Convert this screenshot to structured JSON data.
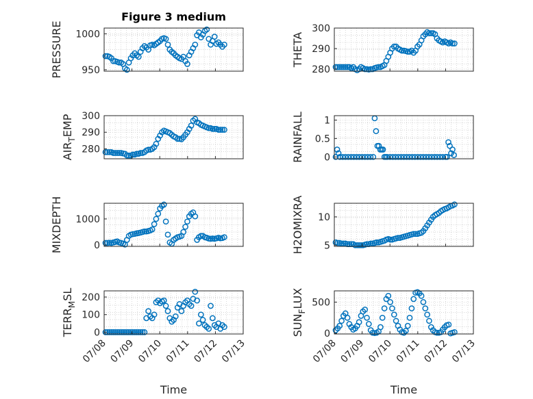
{
  "figure": {
    "title": "Figure 3 medium"
  },
  "chart_data": [
    {
      "type": "scatter",
      "title": "Figure 3 medium",
      "ylabel": "PRESSURE",
      "ylim": [
        948,
        1008
      ],
      "yticks": [
        950,
        1000
      ],
      "xlim": [
        0,
        5
      ],
      "xtick_values": [
        0,
        1,
        2,
        3,
        4,
        5
      ],
      "x_tick_labels": [],
      "xlabel": "",
      "grid": true,
      "x": [
        0.05,
        0.12,
        0.19,
        0.26,
        0.33,
        0.4,
        0.47,
        0.54,
        0.61,
        0.68,
        0.75,
        0.82,
        0.89,
        0.96,
        1.03,
        1.1,
        1.17,
        1.24,
        1.31,
        1.38,
        1.45,
        1.52,
        1.59,
        1.66,
        1.73,
        1.8,
        1.87,
        1.94,
        2.01,
        2.08,
        2.15,
        2.22,
        2.29,
        2.36,
        2.43,
        2.5,
        2.57,
        2.64,
        2.71,
        2.78,
        2.85,
        2.92,
        2.99,
        3.06,
        3.13,
        3.2,
        3.27,
        3.34,
        3.41,
        3.48,
        3.55,
        3.62,
        3.69,
        3.76,
        3.83,
        3.9,
        3.97,
        4.04,
        4.11,
        4.18,
        4.25,
        4.32
      ],
      "y": [
        969,
        969,
        968,
        966,
        962,
        962,
        961,
        960,
        960,
        958,
        952,
        950,
        960,
        966,
        970,
        973,
        970,
        968,
        975,
        980,
        983,
        981,
        978,
        984,
        985,
        984,
        986,
        988,
        990,
        993,
        994,
        993,
        985,
        978,
        975,
        973,
        970,
        968,
        966,
        965,
        968,
        962,
        958,
        970,
        975,
        980,
        985,
        998,
        1002,
        995,
        999,
        1004,
        1006,
        993,
        985,
        990,
        996,
        986,
        988,
        985,
        982,
        985
      ]
    },
    {
      "type": "scatter",
      "title": "",
      "ylabel": "THETA",
      "ylim": [
        279,
        300
      ],
      "yticks": [
        280,
        290,
        300
      ],
      "xlim": [
        0,
        5
      ],
      "xtick_values": [
        0,
        1,
        2,
        3,
        4,
        5
      ],
      "x_tick_labels": [],
      "xlabel": "",
      "grid": true,
      "x": [
        0.05,
        0.12,
        0.19,
        0.26,
        0.33,
        0.4,
        0.47,
        0.54,
        0.61,
        0.68,
        0.75,
        0.82,
        0.89,
        0.96,
        1.03,
        1.1,
        1.17,
        1.24,
        1.31,
        1.38,
        1.45,
        1.52,
        1.59,
        1.66,
        1.73,
        1.8,
        1.87,
        1.94,
        2.01,
        2.08,
        2.15,
        2.22,
        2.29,
        2.36,
        2.43,
        2.5,
        2.57,
        2.64,
        2.71,
        2.78,
        2.85,
        2.92,
        2.99,
        3.06,
        3.13,
        3.2,
        3.27,
        3.34,
        3.41,
        3.48,
        3.55,
        3.62,
        3.69,
        3.76,
        3.83,
        3.9,
        3.97,
        4.04,
        4.11,
        4.18,
        4.25,
        4.32
      ],
      "y": [
        281,
        281,
        281,
        281,
        281,
        281,
        281,
        281,
        280.5,
        281,
        280,
        279.5,
        280,
        281,
        280.5,
        280,
        280,
        279.8,
        280,
        280,
        280.5,
        280.8,
        281,
        281,
        281.5,
        282,
        284,
        286,
        288,
        290,
        291,
        291,
        290,
        289.5,
        289,
        289,
        288.8,
        288.5,
        288.5,
        289,
        288,
        289,
        291,
        292,
        294,
        296,
        297,
        298,
        297.5,
        297.5,
        297.5,
        297,
        295,
        294,
        293.5,
        293,
        293.5,
        293,
        292.5,
        293,
        292.5,
        292.5
      ]
    },
    {
      "type": "scatter",
      "title": "",
      "ylabel": "AIR_TEMP",
      "ylim": [
        274,
        300
      ],
      "yticks": [
        280,
        290,
        300
      ],
      "xlim": [
        0,
        5
      ],
      "xtick_values": [
        0,
        1,
        2,
        3,
        4,
        5
      ],
      "x_tick_labels": [],
      "xlabel": "",
      "grid": true,
      "x": [
        0.05,
        0.12,
        0.19,
        0.26,
        0.33,
        0.4,
        0.47,
        0.54,
        0.61,
        0.68,
        0.75,
        0.82,
        0.89,
        0.96,
        1.03,
        1.1,
        1.17,
        1.24,
        1.31,
        1.38,
        1.45,
        1.52,
        1.59,
        1.66,
        1.73,
        1.8,
        1.87,
        1.94,
        2.01,
        2.08,
        2.15,
        2.22,
        2.29,
        2.36,
        2.43,
        2.5,
        2.57,
        2.64,
        2.71,
        2.78,
        2.85,
        2.92,
        2.99,
        3.06,
        3.13,
        3.2,
        3.27,
        3.34,
        3.41,
        3.48,
        3.55,
        3.62,
        3.69,
        3.76,
        3.83,
        3.9,
        3.97,
        4.04,
        4.11,
        4.18,
        4.25,
        4.32
      ],
      "y": [
        278,
        278,
        278,
        278,
        277.5,
        277.5,
        277.5,
        277.5,
        277.5,
        277.2,
        277,
        276,
        276,
        276,
        276.5,
        276.5,
        277,
        277,
        277.5,
        277.5,
        278,
        279,
        279.5,
        279.5,
        280,
        281,
        283,
        286,
        288,
        290,
        291,
        290.5,
        290,
        289.5,
        288.5,
        287.5,
        287,
        286,
        286,
        285.8,
        287,
        288.5,
        290,
        292,
        294,
        297,
        298,
        296,
        295.5,
        294.5,
        294,
        293.5,
        293,
        292.5,
        292.5,
        292,
        292,
        292,
        291.5,
        291.5,
        291.5,
        291.5
      ]
    },
    {
      "type": "scatter",
      "title": "",
      "ylabel": "RAINFALL",
      "ylim": [
        -0.05,
        1.12
      ],
      "yticks": [
        0,
        0.5,
        1
      ],
      "xlim": [
        0,
        5
      ],
      "xtick_values": [
        0,
        1,
        2,
        3,
        4,
        5
      ],
      "x_tick_labels": [],
      "xlabel": "",
      "grid": true,
      "x": [
        0.05,
        0.1,
        0.15,
        0.2,
        0.3,
        0.4,
        0.5,
        0.6,
        0.7,
        0.8,
        0.9,
        1.0,
        1.1,
        1.2,
        1.3,
        1.4,
        1.45,
        1.5,
        1.55,
        1.6,
        1.65,
        1.7,
        1.75,
        1.8,
        1.85,
        1.9,
        2.0,
        2.1,
        2.2,
        2.3,
        2.4,
        2.5,
        2.6,
        2.7,
        2.8,
        2.9,
        3.0,
        3.1,
        3.2,
        3.3,
        3.4,
        3.5,
        3.6,
        3.7,
        3.8,
        3.9,
        4.0,
        4.05,
        4.1,
        4.15,
        4.2,
        4.25,
        4.3
      ],
      "y": [
        0,
        0.2,
        0.1,
        0,
        0,
        0,
        0,
        0,
        0,
        0,
        0,
        0,
        0,
        0,
        0,
        0,
        1.05,
        0.7,
        0.3,
        0.3,
        0.2,
        0.2,
        0.2,
        0,
        0,
        0,
        0,
        0,
        0,
        0,
        0,
        0,
        0,
        0,
        0,
        0,
        0,
        0,
        0,
        0,
        0,
        0,
        0,
        0,
        0,
        0,
        0,
        0,
        0.4,
        0.3,
        0.1,
        0.2,
        0.05
      ]
    },
    {
      "type": "scatter",
      "title": "",
      "ylabel": "MIXDEPTH",
      "ylim": [
        -50,
        1600
      ],
      "yticks": [
        0,
        1000
      ],
      "xlim": [
        0,
        5
      ],
      "xtick_values": [
        0,
        1,
        2,
        3,
        4,
        5
      ],
      "x_tick_labels": [],
      "xlabel": "",
      "grid": true,
      "x": [
        0.05,
        0.12,
        0.19,
        0.26,
        0.33,
        0.4,
        0.47,
        0.54,
        0.61,
        0.68,
        0.75,
        0.82,
        0.89,
        0.96,
        1.03,
        1.1,
        1.17,
        1.24,
        1.31,
        1.38,
        1.45,
        1.52,
        1.59,
        1.66,
        1.73,
        1.8,
        1.87,
        1.94,
        2.01,
        2.08,
        2.15,
        2.22,
        2.29,
        2.36,
        2.43,
        2.5,
        2.57,
        2.64,
        2.71,
        2.78,
        2.85,
        2.92,
        2.99,
        3.06,
        3.13,
        3.2,
        3.27,
        3.34,
        3.41,
        3.48,
        3.55,
        3.62,
        3.69,
        3.76,
        3.83,
        3.9,
        3.97,
        4.04,
        4.11,
        4.18,
        4.25,
        4.32
      ],
      "y": [
        80,
        80,
        90,
        80,
        100,
        120,
        140,
        100,
        80,
        60,
        20,
        200,
        350,
        400,
        420,
        430,
        450,
        460,
        480,
        500,
        520,
        520,
        540,
        560,
        600,
        800,
        1000,
        1200,
        1400,
        1500,
        1550,
        900,
        400,
        100,
        50,
        200,
        250,
        300,
        320,
        350,
        500,
        700,
        900,
        1100,
        1200,
        1250,
        1100,
        200,
        300,
        350,
        350,
        300,
        280,
        250,
        240,
        250,
        240,
        260,
        280,
        260,
        270,
        300
      ]
    },
    {
      "type": "scatter",
      "title": "",
      "ylabel": "H2OMIXRA",
      "ylim": [
        4.8,
        12.4
      ],
      "yticks": [
        5,
        10
      ],
      "xlim": [
        0,
        5
      ],
      "xtick_values": [
        0,
        1,
        2,
        3,
        4,
        5
      ],
      "x_tick_labels": [],
      "xlabel": "",
      "grid": true,
      "x": [
        0.05,
        0.12,
        0.19,
        0.26,
        0.33,
        0.4,
        0.47,
        0.54,
        0.61,
        0.68,
        0.75,
        0.82,
        0.89,
        0.96,
        1.03,
        1.1,
        1.17,
        1.24,
        1.31,
        1.38,
        1.45,
        1.52,
        1.59,
        1.66,
        1.73,
        1.8,
        1.87,
        1.94,
        2.01,
        2.08,
        2.15,
        2.22,
        2.29,
        2.36,
        2.43,
        2.5,
        2.57,
        2.64,
        2.71,
        2.78,
        2.85,
        2.92,
        2.99,
        3.06,
        3.13,
        3.2,
        3.27,
        3.34,
        3.41,
        3.48,
        3.55,
        3.62,
        3.69,
        3.76,
        3.83,
        3.9,
        3.97,
        4.04,
        4.11,
        4.18,
        4.25,
        4.32
      ],
      "y": [
        5.5,
        5.4,
        5.4,
        5.3,
        5.3,
        5.3,
        5.2,
        5.2,
        5.2,
        5.2,
        5.0,
        5.0,
        5.0,
        5.0,
        5.0,
        5.1,
        5.2,
        5.2,
        5.3,
        5.3,
        5.4,
        5.5,
        5.5,
        5.6,
        5.7,
        5.8,
        6.0,
        6.1,
        6.0,
        6.0,
        6.1,
        6.2,
        6.3,
        6.3,
        6.4,
        6.5,
        6.6,
        6.7,
        6.8,
        6.9,
        7.0,
        7.0,
        7.0,
        7.1,
        7.2,
        7.5,
        8.0,
        8.5,
        9.0,
        9.5,
        10.0,
        10.3,
        10.5,
        10.7,
        11.0,
        11.2,
        11.4,
        11.5,
        11.7,
        11.9,
        12.0,
        12.2
      ]
    },
    {
      "type": "scatter",
      "title": "",
      "ylabel": "TERR_MSL",
      "ylim": [
        -10,
        235
      ],
      "yticks": [
        0,
        100,
        200
      ],
      "xlim": [
        0,
        5
      ],
      "xtick_values": [
        0,
        1,
        2,
        3,
        4,
        5
      ],
      "x_tick_labels": [
        "07/08",
        "07/09",
        "07/10",
        "07/11",
        "07/12",
        "07/13"
      ],
      "xlabel": "Time",
      "grid": true,
      "x": [
        0.05,
        0.12,
        0.19,
        0.26,
        0.33,
        0.4,
        0.47,
        0.54,
        0.61,
        0.68,
        0.75,
        0.82,
        0.89,
        0.96,
        1.03,
        1.1,
        1.17,
        1.24,
        1.31,
        1.38,
        1.45,
        1.52,
        1.59,
        1.66,
        1.73,
        1.8,
        1.87,
        1.94,
        2.01,
        2.08,
        2.15,
        2.22,
        2.29,
        2.36,
        2.43,
        2.5,
        2.57,
        2.64,
        2.71,
        2.78,
        2.85,
        2.92,
        2.99,
        3.06,
        3.13,
        3.2,
        3.27,
        3.34,
        3.41,
        3.48,
        3.55,
        3.62,
        3.69,
        3.76,
        3.83,
        3.9,
        3.97,
        4.04,
        4.11,
        4.18,
        4.25,
        4.32
      ],
      "y": [
        0,
        0,
        0,
        0,
        0,
        0,
        0,
        0,
        0,
        0,
        0,
        0,
        0,
        0,
        0,
        0,
        0,
        0,
        0,
        0,
        0,
        80,
        120,
        90,
        80,
        100,
        170,
        180,
        165,
        175,
        180,
        150,
        120,
        80,
        60,
        70,
        90,
        140,
        160,
        120,
        150,
        170,
        180,
        160,
        150,
        190,
        230,
        180,
        50,
        100,
        70,
        40,
        30,
        20,
        150,
        80,
        40,
        30,
        50,
        20,
        40,
        30
      ]
    },
    {
      "type": "scatter",
      "title": "",
      "ylabel": "SUN_FLUX",
      "ylim": [
        -10,
        680
      ],
      "yticks": [
        0,
        500
      ],
      "xlim": [
        0,
        5
      ],
      "xtick_values": [
        0,
        1,
        2,
        3,
        4,
        5
      ],
      "x_tick_labels": [
        "07/08",
        "07/09",
        "07/10",
        "07/11",
        "07/12",
        "07/13"
      ],
      "xlabel": "Time",
      "grid": true,
      "x": [
        0.05,
        0.12,
        0.19,
        0.26,
        0.33,
        0.4,
        0.47,
        0.54,
        0.61,
        0.68,
        0.75,
        0.82,
        0.89,
        0.96,
        1.03,
        1.1,
        1.17,
        1.24,
        1.31,
        1.38,
        1.45,
        1.52,
        1.59,
        1.66,
        1.73,
        1.8,
        1.87,
        1.94,
        2.01,
        2.08,
        2.15,
        2.22,
        2.29,
        2.36,
        2.43,
        2.5,
        2.57,
        2.64,
        2.71,
        2.78,
        2.85,
        2.92,
        2.99,
        3.06,
        3.13,
        3.2,
        3.27,
        3.34,
        3.41,
        3.48,
        3.55,
        3.62,
        3.69,
        3.76,
        3.83,
        3.9,
        3.97,
        4.04,
        4.11,
        4.18,
        4.25,
        4.32
      ],
      "y": [
        50,
        80,
        120,
        200,
        280,
        320,
        250,
        150,
        100,
        60,
        80,
        120,
        180,
        280,
        350,
        380,
        250,
        150,
        50,
        10,
        5,
        10,
        30,
        100,
        250,
        400,
        550,
        600,
        500,
        400,
        300,
        200,
        120,
        60,
        20,
        10,
        40,
        120,
        250,
        400,
        550,
        650,
        660,
        640,
        600,
        500,
        400,
        300,
        200,
        100,
        50,
        20,
        10,
        10,
        20,
        60,
        100,
        130,
        140,
        0,
        10,
        20
      ]
    }
  ]
}
